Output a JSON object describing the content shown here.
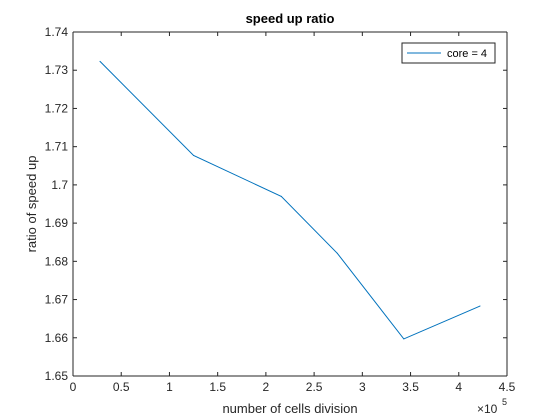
{
  "chart_data": {
    "type": "line",
    "title": "speed up ratio",
    "xlabel": "number of cells division",
    "ylabel": "ratio of speed up",
    "x_exponent": {
      "base": "×10",
      "power": "5"
    },
    "xlim": [
      0,
      450000
    ],
    "ylim": [
      1.65,
      1.74
    ],
    "xticks": [
      0,
      50000,
      100000,
      150000,
      200000,
      250000,
      300000,
      350000,
      400000,
      450000
    ],
    "xtick_labels": [
      "0",
      "0.5",
      "1",
      "1.5",
      "2",
      "2.5",
      "3",
      "3.5",
      "4",
      "4.5"
    ],
    "yticks": [
      1.65,
      1.66,
      1.67,
      1.68,
      1.69,
      1.7,
      1.71,
      1.72,
      1.73,
      1.74
    ],
    "ytick_labels": [
      "1.65",
      "1.66",
      "1.67",
      "1.68",
      "1.69",
      "1.7",
      "1.71",
      "1.72",
      "1.73",
      "1.74"
    ],
    "grid": false,
    "legend_position": "top-right",
    "series": [
      {
        "name": "core = 4",
        "color": "#0072BD",
        "x": [
          28000,
          125000,
          216000,
          274000,
          343000,
          422000
        ],
        "y": [
          1.7323,
          1.7077,
          1.697,
          1.6821,
          1.6597,
          1.6683
        ]
      }
    ]
  }
}
